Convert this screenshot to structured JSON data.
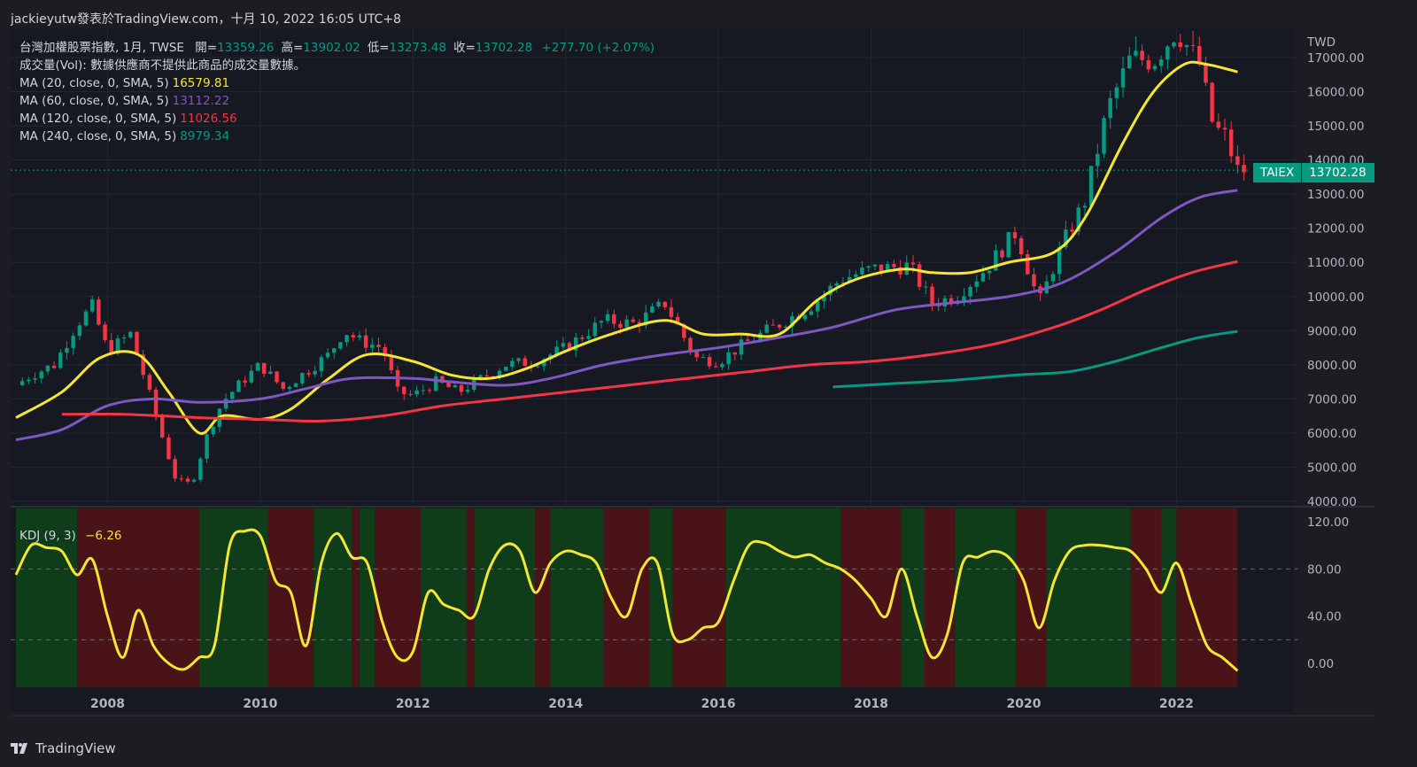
{
  "header": {
    "text": "jackieyutw發表於TradingView.com，十月 10, 2022 16:05 UTC+8"
  },
  "legend": {
    "title": "台灣加權股票指數, 1月, TWSE",
    "ohlc": [
      {
        "label": "開",
        "value": "13359.26"
      },
      {
        "label": "高",
        "value": "13902.02"
      },
      {
        "label": "低",
        "value": "13273.48"
      },
      {
        "label": "收",
        "value": "13702.28"
      }
    ],
    "change": "+277.70 (+2.07%)",
    "volume": "成交量(Vol): 數據供應商不提供此商品的成交量數據。",
    "ma": [
      {
        "label": "MA (20, close, 0, SMA, 5)",
        "value": "16579.81",
        "color": "#f5e633"
      },
      {
        "label": "MA (60, close, 0, SMA, 5)",
        "value": "13112.22",
        "color": "#7e57c2"
      },
      {
        "label": "MA (120, close, 0, SMA, 5)",
        "value": "11026.56",
        "color": "#f23645"
      },
      {
        "label": "MA (240, close, 0, SMA, 5)",
        "value": "8979.34",
        "color": "#089981"
      }
    ]
  },
  "kdj": {
    "label": "KDJ (9, 3)",
    "value": "−6.26",
    "color": "#f5e633"
  },
  "price_tag": {
    "symbol": "TAIEX",
    "price": "13702.28"
  },
  "footer": {
    "brand": "TradingView"
  },
  "colors": {
    "up": "#089981",
    "down": "#f23645",
    "background": "#1b1d22",
    "grid": "#2a2e39",
    "text": "#d1d4dc",
    "kdj_bull_bg": "#0f3d1a",
    "kdj_bear_bg": "#4a1318"
  },
  "chart_data": [
    {
      "type": "candlestick",
      "title": "台灣加權股票指數, 1月, TWSE",
      "currency": "TWD",
      "x_ticks": [
        "2008",
        "2010",
        "2012",
        "2014",
        "2016",
        "2018",
        "2020",
        "2022"
      ],
      "y_ticks": [
        "4000.00",
        "5000.00",
        "6000.00",
        "7000.00",
        "8000.00",
        "9000.00",
        "10000.00",
        "11000.00",
        "12000.00",
        "13000.00",
        "14000.00",
        "15000.00",
        "16000.00",
        "17000.00"
      ],
      "ylim": [
        3900,
        17800
      ],
      "xlim": [
        2006.8,
        2022.9
      ],
      "anchors_close": [
        [
          2006.8,
          7400
        ],
        [
          2007.0,
          7700
        ],
        [
          2007.3,
          8000
        ],
        [
          2007.6,
          9200
        ],
        [
          2007.8,
          9700
        ],
        [
          2008.0,
          8400
        ],
        [
          2008.3,
          8900
        ],
        [
          2008.5,
          7500
        ],
        [
          2008.7,
          6000
        ],
        [
          2008.9,
          4600
        ],
        [
          2009.1,
          4500
        ],
        [
          2009.3,
          5900
        ],
        [
          2009.5,
          6900
        ],
        [
          2009.8,
          7600
        ],
        [
          2010.0,
          8000
        ],
        [
          2010.3,
          7300
        ],
        [
          2010.6,
          7800
        ],
        [
          2010.9,
          8300
        ],
        [
          2011.1,
          9000
        ],
        [
          2011.3,
          8700
        ],
        [
          2011.6,
          8500
        ],
        [
          2011.8,
          7200
        ],
        [
          2012.0,
          7100
        ],
        [
          2012.3,
          7500
        ],
        [
          2012.6,
          7200
        ],
        [
          2012.9,
          7600
        ],
        [
          2013.2,
          8000
        ],
        [
          2013.6,
          8100
        ],
        [
          2014.0,
          8500
        ],
        [
          2014.5,
          9300
        ],
        [
          2014.9,
          9200
        ],
        [
          2015.3,
          9800
        ],
        [
          2015.7,
          8200
        ],
        [
          2016.0,
          8100
        ],
        [
          2016.4,
          8700
        ],
        [
          2016.8,
          9200
        ],
        [
          2017.2,
          9700
        ],
        [
          2017.6,
          10500
        ],
        [
          2018.0,
          10800
        ],
        [
          2018.5,
          10900
        ],
        [
          2018.8,
          9800
        ],
        [
          2019.1,
          10000
        ],
        [
          2019.5,
          10800
        ],
        [
          2019.9,
          11900
        ],
        [
          2020.2,
          9800
        ],
        [
          2020.5,
          11500
        ],
        [
          2020.8,
          12800
        ],
        [
          2021.1,
          15500
        ],
        [
          2021.4,
          17000
        ],
        [
          2021.7,
          16900
        ],
        [
          2022.0,
          17800
        ],
        [
          2022.3,
          16800
        ],
        [
          2022.5,
          14800
        ],
        [
          2022.6,
          14900
        ],
        [
          2022.8,
          13702.28
        ]
      ],
      "last_close": 13702.28,
      "series": [
        {
          "name": "MA (20, close, 0, SMA, 5)",
          "color": "#f5e633",
          "last": 16579.81,
          "points": [
            [
              2006.8,
              6450
            ],
            [
              2007.4,
              7200
            ],
            [
              2007.9,
              8200
            ],
            [
              2008.4,
              8300
            ],
            [
              2008.8,
              7200
            ],
            [
              2009.2,
              6000
            ],
            [
              2009.5,
              6500
            ],
            [
              2010.0,
              6400
            ],
            [
              2010.4,
              6700
            ],
            [
              2010.9,
              7600
            ],
            [
              2011.4,
              8300
            ],
            [
              2012.0,
              8100
            ],
            [
              2012.5,
              7700
            ],
            [
              2013.0,
              7600
            ],
            [
              2013.5,
              7900
            ],
            [
              2014.0,
              8400
            ],
            [
              2014.6,
              8900
            ],
            [
              2015.3,
              9300
            ],
            [
              2015.8,
              8900
            ],
            [
              2016.3,
              8900
            ],
            [
              2016.8,
              8900
            ],
            [
              2017.3,
              9900
            ],
            [
              2017.8,
              10500
            ],
            [
              2018.4,
              10800
            ],
            [
              2018.8,
              10700
            ],
            [
              2019.3,
              10700
            ],
            [
              2019.8,
              11000
            ],
            [
              2020.4,
              11300
            ],
            [
              2020.8,
              12300
            ],
            [
              2021.3,
              14500
            ],
            [
              2021.7,
              16000
            ],
            [
              2022.1,
              16800
            ],
            [
              2022.4,
              16800
            ],
            [
              2022.8,
              16579.81
            ]
          ]
        },
        {
          "name": "MA (60, close, 0, SMA, 5)",
          "color": "#7e57c2",
          "last": 13112.22,
          "points": [
            [
              2006.8,
              5800
            ],
            [
              2007.4,
              6100
            ],
            [
              2008.0,
              6800
            ],
            [
              2008.6,
              7000
            ],
            [
              2009.2,
              6900
            ],
            [
              2010.0,
              7000
            ],
            [
              2010.6,
              7300
            ],
            [
              2011.2,
              7600
            ],
            [
              2012.0,
              7600
            ],
            [
              2012.5,
              7500
            ],
            [
              2013.2,
              7400
            ],
            [
              2013.8,
              7600
            ],
            [
              2014.5,
              8000
            ],
            [
              2015.3,
              8300
            ],
            [
              2016.0,
              8500
            ],
            [
              2016.8,
              8800
            ],
            [
              2017.5,
              9100
            ],
            [
              2018.3,
              9600
            ],
            [
              2019.0,
              9800
            ],
            [
              2019.8,
              10000
            ],
            [
              2020.5,
              10400
            ],
            [
              2021.2,
              11300
            ],
            [
              2021.8,
              12300
            ],
            [
              2022.3,
              12900
            ],
            [
              2022.8,
              13112.22
            ]
          ]
        },
        {
          "name": "MA (120, close, 0, SMA, 5)",
          "color": "#f23645",
          "last": 11026.56,
          "points": [
            [
              2007.4,
              6550
            ],
            [
              2008.2,
              6550
            ],
            [
              2009.2,
              6450
            ],
            [
              2010.0,
              6400
            ],
            [
              2010.8,
              6350
            ],
            [
              2011.6,
              6500
            ],
            [
              2012.4,
              6800
            ],
            [
              2013.2,
              7000
            ],
            [
              2014.0,
              7200
            ],
            [
              2014.8,
              7400
            ],
            [
              2015.6,
              7600
            ],
            [
              2016.4,
              7800
            ],
            [
              2017.2,
              8000
            ],
            [
              2018.0,
              8100
            ],
            [
              2018.8,
              8300
            ],
            [
              2019.6,
              8600
            ],
            [
              2020.4,
              9100
            ],
            [
              2021.0,
              9600
            ],
            [
              2021.6,
              10200
            ],
            [
              2022.2,
              10700
            ],
            [
              2022.8,
              11026.56
            ]
          ]
        },
        {
          "name": "MA (240, close, 0, SMA, 5)",
          "color": "#089981",
          "last": 8979.34,
          "points": [
            [
              2017.5,
              7350
            ],
            [
              2018.3,
              7450
            ],
            [
              2019.1,
              7550
            ],
            [
              2019.9,
              7700
            ],
            [
              2020.6,
              7800
            ],
            [
              2021.2,
              8100
            ],
            [
              2021.8,
              8500
            ],
            [
              2022.3,
              8800
            ],
            [
              2022.8,
              8979.34
            ]
          ]
        }
      ]
    },
    {
      "type": "line",
      "title": "KDJ (9, 3)",
      "y_ticks": [
        "0.00",
        "40.00",
        "80.00",
        "120.00"
      ],
      "ylim": [
        -20,
        130
      ],
      "reference_lines": [
        20,
        80
      ],
      "last": -6.26,
      "x": [
        2006.8,
        2007.0,
        2007.2,
        2007.4,
        2007.6,
        2007.8,
        2008.0,
        2008.2,
        2008.4,
        2008.6,
        2008.8,
        2009.0,
        2009.2,
        2009.4,
        2009.6,
        2009.8,
        2010.0,
        2010.2,
        2010.4,
        2010.6,
        2010.8,
        2011.0,
        2011.2,
        2011.4,
        2011.6,
        2011.8,
        2012.0,
        2012.2,
        2012.4,
        2012.6,
        2012.8,
        2013.0,
        2013.2,
        2013.4,
        2013.6,
        2013.8,
        2014.0,
        2014.2,
        2014.4,
        2014.6,
        2014.8,
        2015.0,
        2015.2,
        2015.4,
        2015.6,
        2015.8,
        2016.0,
        2016.2,
        2016.4,
        2016.6,
        2016.8,
        2017.0,
        2017.2,
        2017.4,
        2017.6,
        2017.8,
        2018.0,
        2018.2,
        2018.4,
        2018.6,
        2018.8,
        2019.0,
        2019.2,
        2019.4,
        2019.6,
        2019.8,
        2020.0,
        2020.2,
        2020.4,
        2020.6,
        2020.8,
        2021.0,
        2021.2,
        2021.4,
        2021.6,
        2021.8,
        2022.0,
        2022.2,
        2022.4,
        2022.6,
        2022.8
      ],
      "values": [
        75,
        100,
        98,
        95,
        75,
        88,
        40,
        5,
        45,
        15,
        0,
        -5,
        5,
        15,
        100,
        112,
        108,
        70,
        60,
        15,
        85,
        110,
        90,
        85,
        35,
        5,
        10,
        60,
        50,
        45,
        40,
        80,
        100,
        95,
        60,
        85,
        95,
        92,
        85,
        55,
        40,
        80,
        85,
        25,
        20,
        30,
        35,
        70,
        100,
        102,
        95,
        90,
        92,
        85,
        80,
        70,
        55,
        40,
        80,
        40,
        5,
        25,
        85,
        90,
        95,
        90,
        70,
        30,
        70,
        95,
        100,
        100,
        98,
        95,
        80,
        60,
        85,
        50,
        15,
        5,
        -6.26
      ],
      "regimes": [
        {
          "from": 2006.8,
          "to": 2007.6,
          "state": "bull"
        },
        {
          "from": 2007.6,
          "to": 2007.8,
          "state": "bear"
        },
        {
          "from": 2007.8,
          "to": 2009.2,
          "state": "bear"
        },
        {
          "from": 2009.2,
          "to": 2010.1,
          "state": "bull"
        },
        {
          "from": 2010.1,
          "to": 2010.7,
          "state": "bear"
        },
        {
          "from": 2010.7,
          "to": 2011.2,
          "state": "bull"
        },
        {
          "from": 2011.2,
          "to": 2011.3,
          "state": "bear"
        },
        {
          "from": 2011.3,
          "to": 2011.5,
          "state": "bull"
        },
        {
          "from": 2011.5,
          "to": 2012.1,
          "state": "bear"
        },
        {
          "from": 2012.1,
          "to": 2012.7,
          "state": "bull"
        },
        {
          "from": 2012.7,
          "to": 2012.8,
          "state": "bear"
        },
        {
          "from": 2012.8,
          "to": 2013.6,
          "state": "bull"
        },
        {
          "from": 2013.6,
          "to": 2013.8,
          "state": "bear"
        },
        {
          "from": 2013.8,
          "to": 2014.5,
          "state": "bull"
        },
        {
          "from": 2014.5,
          "to": 2015.1,
          "state": "bear"
        },
        {
          "from": 2015.1,
          "to": 2015.4,
          "state": "bull"
        },
        {
          "from": 2015.4,
          "to": 2016.1,
          "state": "bear"
        },
        {
          "from": 2016.1,
          "to": 2017.6,
          "state": "bull"
        },
        {
          "from": 2017.6,
          "to": 2017.8,
          "state": "bear"
        },
        {
          "from": 2017.8,
          "to": 2018.4,
          "state": "bear"
        },
        {
          "from": 2018.4,
          "to": 2018.7,
          "state": "bull"
        },
        {
          "from": 2018.7,
          "to": 2019.1,
          "state": "bear"
        },
        {
          "from": 2019.1,
          "to": 2019.9,
          "state": "bull"
        },
        {
          "from": 2019.9,
          "to": 2020.3,
          "state": "bear"
        },
        {
          "from": 2020.3,
          "to": 2021.4,
          "state": "bull"
        },
        {
          "from": 2021.4,
          "to": 2021.8,
          "state": "bear"
        },
        {
          "from": 2021.8,
          "to": 2022.0,
          "state": "bull"
        },
        {
          "from": 2022.0,
          "to": 2022.8,
          "state": "bear"
        }
      ]
    }
  ]
}
